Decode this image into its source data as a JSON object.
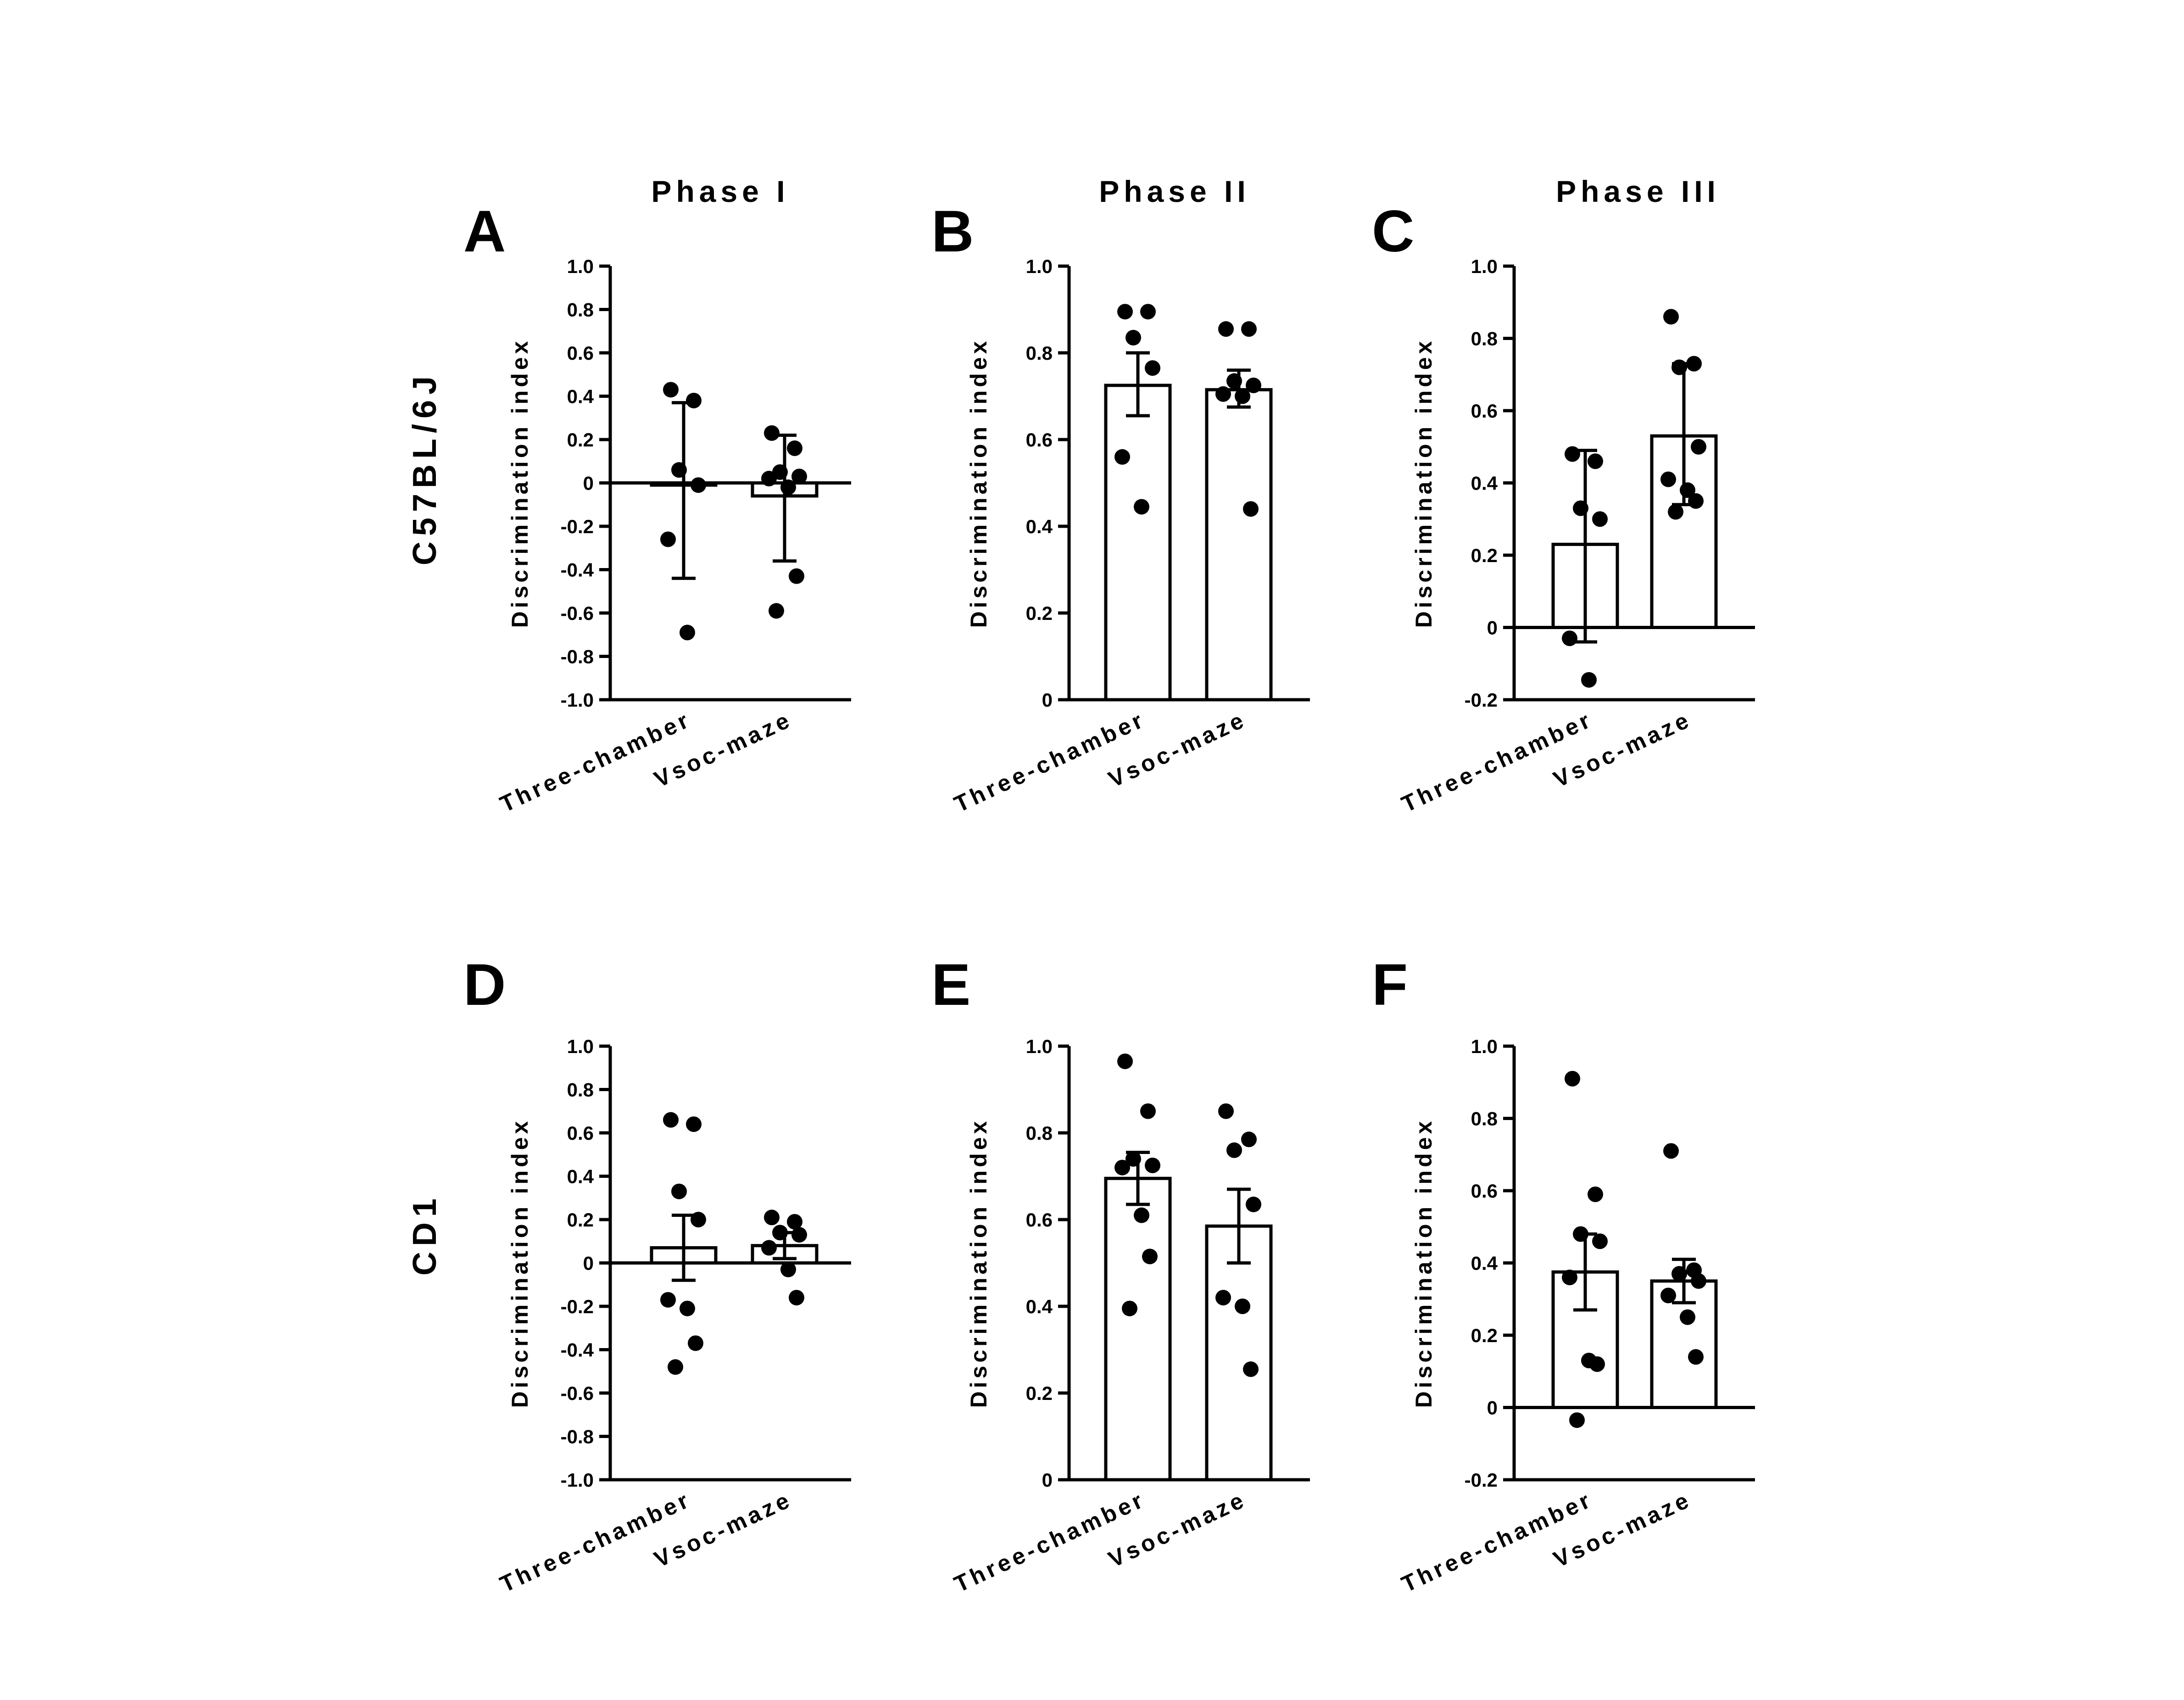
{
  "phase_titles": [
    "Phase I",
    "Phase II",
    "Phase III"
  ],
  "row_labels": [
    "C57BL/6J",
    "CD1"
  ],
  "chart_data": [
    {
      "panel": "A",
      "type": "bar",
      "ylabel": "Discrimination index",
      "ylim": [
        -1.0,
        1.0
      ],
      "yticks": [
        -1.0,
        -0.8,
        -0.6,
        -0.4,
        -0.2,
        0,
        0.2,
        0.4,
        0.6,
        0.8,
        1.0
      ],
      "ytick_labels": [
        "-1.0",
        "-0.8",
        "-0.6",
        "-0.4",
        "-0.2",
        "0",
        "0.2",
        "0.4",
        "0.6",
        "0.8",
        "1.0"
      ],
      "categories": [
        "Three-chamber",
        "Vsoc-maze"
      ],
      "values": [
        -0.01,
        -0.06
      ],
      "error_low": [
        -0.44,
        -0.36
      ],
      "error_high": [
        0.37,
        0.22
      ],
      "points": [
        [
          0.43,
          0.38,
          0.06,
          -0.01,
          -0.26,
          -0.69
        ],
        [
          0.23,
          0.16,
          0.05,
          0.03,
          0.02,
          -0.02,
          -0.43,
          -0.59
        ]
      ]
    },
    {
      "panel": "B",
      "type": "bar",
      "ylabel": "Discrimination index",
      "ylim": [
        0,
        1.0
      ],
      "yticks": [
        0,
        0.2,
        0.4,
        0.6,
        0.8,
        1.0
      ],
      "ytick_labels": [
        "0",
        "0.2",
        "0.4",
        "0.6",
        "0.8",
        "1.0"
      ],
      "categories": [
        "Three-chamber",
        "Vsoc-maze"
      ],
      "values": [
        0.725,
        0.715
      ],
      "error_low": [
        0.655,
        0.675
      ],
      "error_high": [
        0.8,
        0.76
      ],
      "points": [
        [
          0.895,
          0.895,
          0.835,
          0.765,
          0.56,
          0.445
        ],
        [
          0.855,
          0.855,
          0.735,
          0.725,
          0.705,
          0.7,
          0.44
        ]
      ]
    },
    {
      "panel": "C",
      "type": "bar",
      "ylabel": "Discrimination index",
      "ylim": [
        -0.2,
        1.0
      ],
      "yticks": [
        -0.2,
        0,
        0.2,
        0.4,
        0.6,
        0.8,
        1.0
      ],
      "ytick_labels": [
        "-0.2",
        "0",
        "0.2",
        "0.4",
        "0.6",
        "0.8",
        "1.0"
      ],
      "categories": [
        "Three-chamber",
        "Vsoc-maze"
      ],
      "values": [
        0.23,
        0.53
      ],
      "error_low": [
        -0.04,
        0.34
      ],
      "error_high": [
        0.49,
        0.73
      ],
      "points": [
        [
          0.48,
          0.46,
          0.33,
          0.3,
          -0.03,
          -0.145
        ],
        [
          0.86,
          0.73,
          0.72,
          0.5,
          0.41,
          0.38,
          0.35,
          0.32
        ]
      ]
    },
    {
      "panel": "D",
      "type": "bar",
      "ylabel": "Discrimination index",
      "ylim": [
        -1.0,
        1.0
      ],
      "yticks": [
        -1.0,
        -0.8,
        -0.6,
        -0.4,
        -0.2,
        0,
        0.2,
        0.4,
        0.6,
        0.8,
        1.0
      ],
      "ytick_labels": [
        "-1.0",
        "-0.8",
        "-0.6",
        "-0.4",
        "-0.2",
        "0",
        "0.2",
        "0.4",
        "0.6",
        "0.8",
        "1.0"
      ],
      "categories": [
        "Three-chamber",
        "Vsoc-maze"
      ],
      "values": [
        0.07,
        0.08
      ],
      "error_low": [
        -0.08,
        0.02
      ],
      "error_high": [
        0.22,
        0.14
      ],
      "points": [
        [
          0.66,
          0.64,
          0.33,
          0.2,
          -0.17,
          -0.21,
          -0.37,
          -0.48
        ],
        [
          0.21,
          0.19,
          0.14,
          0.13,
          0.07,
          -0.03,
          -0.16
        ]
      ]
    },
    {
      "panel": "E",
      "type": "bar",
      "ylabel": "Discrimination index",
      "ylim": [
        0,
        1.0
      ],
      "yticks": [
        0,
        0.2,
        0.4,
        0.6,
        0.8,
        1.0
      ],
      "ytick_labels": [
        "0",
        "0.2",
        "0.4",
        "0.6",
        "0.8",
        "1.0"
      ],
      "categories": [
        "Three-chamber",
        "Vsoc-maze"
      ],
      "values": [
        0.695,
        0.585
      ],
      "error_low": [
        0.635,
        0.5
      ],
      "error_high": [
        0.755,
        0.67
      ],
      "points": [
        [
          0.965,
          0.85,
          0.74,
          0.725,
          0.72,
          0.61,
          0.515,
          0.395
        ],
        [
          0.85,
          0.785,
          0.76,
          0.635,
          0.42,
          0.4,
          0.255
        ]
      ]
    },
    {
      "panel": "F",
      "type": "bar",
      "ylabel": "Discrimination index",
      "ylim": [
        -0.2,
        1.0
      ],
      "yticks": [
        -0.2,
        0,
        0.2,
        0.4,
        0.6,
        0.8,
        1.0
      ],
      "ytick_labels": [
        "-0.2",
        "0",
        "0.2",
        "0.4",
        "0.6",
        "0.8",
        "1.0"
      ],
      "categories": [
        "Three-chamber",
        "Vsoc-maze"
      ],
      "values": [
        0.375,
        0.35
      ],
      "error_low": [
        0.27,
        0.29
      ],
      "error_high": [
        0.48,
        0.41
      ],
      "points": [
        [
          0.91,
          0.59,
          0.48,
          0.46,
          0.36,
          0.13,
          0.12,
          -0.035
        ],
        [
          0.71,
          0.38,
          0.37,
          0.35,
          0.31,
          0.25,
          0.14
        ]
      ]
    }
  ]
}
